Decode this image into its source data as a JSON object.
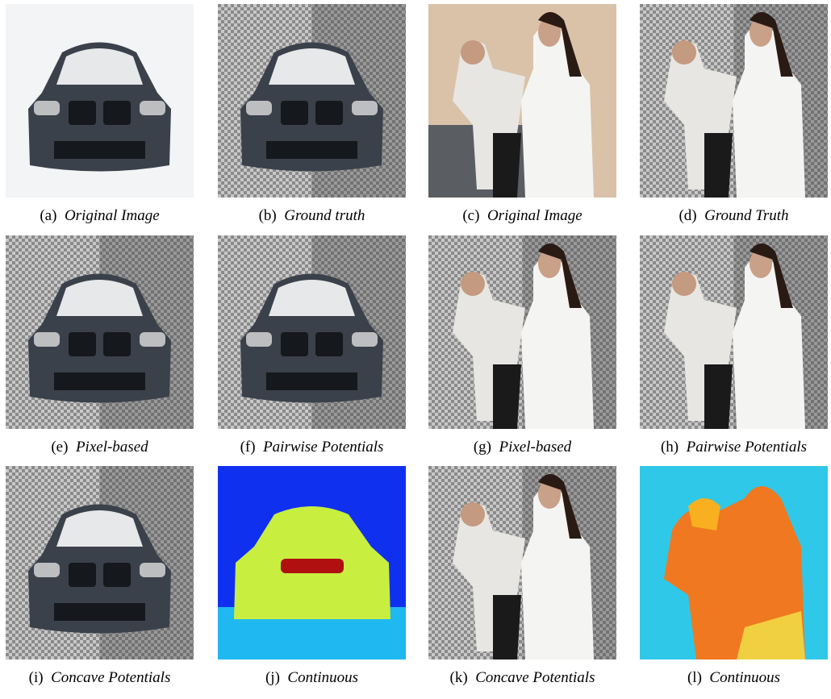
{
  "figure": {
    "panels": [
      {
        "label": "(a)",
        "caption": "Original Image"
      },
      {
        "label": "(b)",
        "caption": "Ground truth"
      },
      {
        "label": "(c)",
        "caption": "Original Image"
      },
      {
        "label": "(d)",
        "caption": "Ground Truth"
      },
      {
        "label": "(e)",
        "caption": "Pixel-based"
      },
      {
        "label": "(f)",
        "caption": "Pairwise Potentials"
      },
      {
        "label": "(g)",
        "caption": "Pixel-based"
      },
      {
        "label": "(h)",
        "caption": "Pairwise Potentials"
      },
      {
        "label": "(i)",
        "caption": "Concave Potentials"
      },
      {
        "label": "(j)",
        "caption": "Continuous"
      },
      {
        "label": "(k)",
        "caption": "Concave Potentials"
      },
      {
        "label": "(l)",
        "caption": "Continuous"
      }
    ]
  }
}
